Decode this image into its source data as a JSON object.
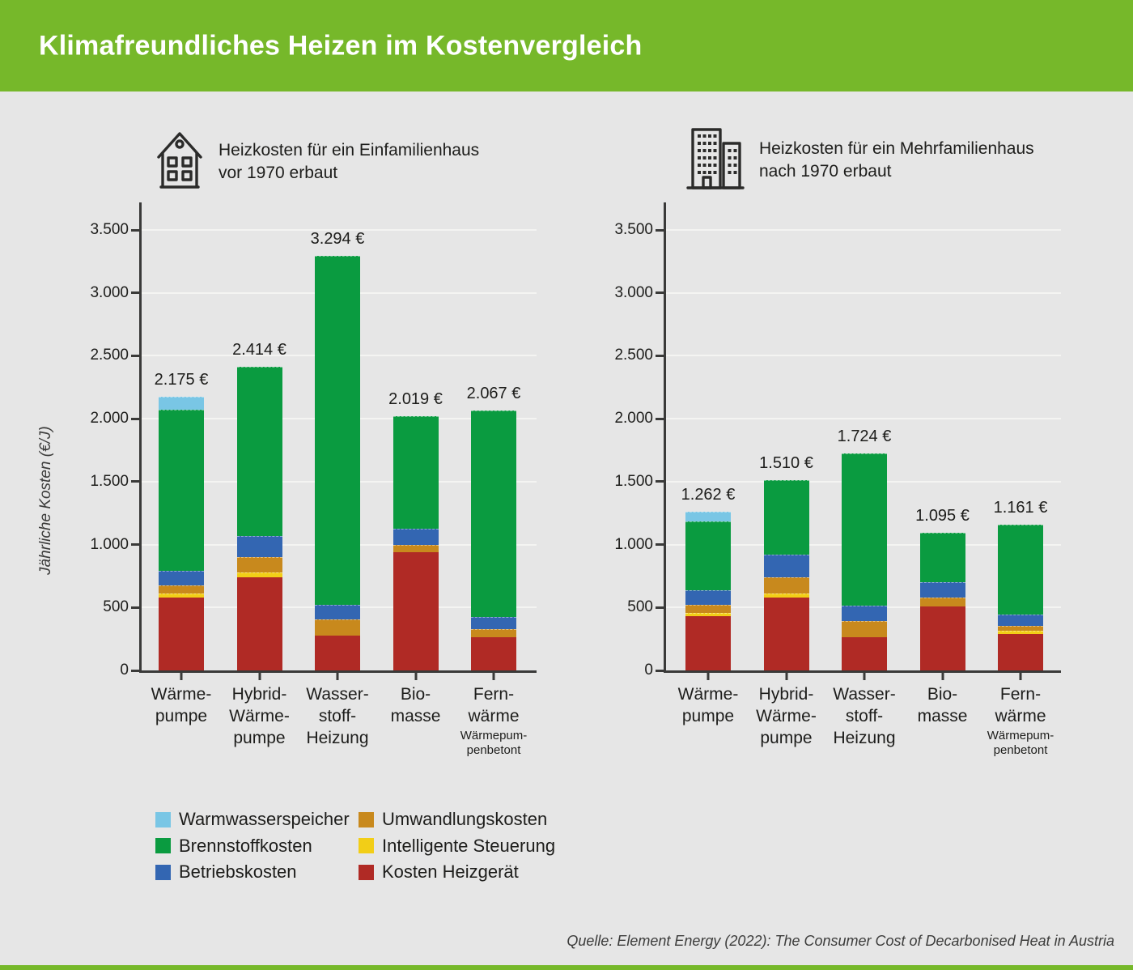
{
  "page": {
    "title": "Klimafreundliches Heizen im Kostenvergleich",
    "source": "Quelle: Element Energy (2022): The Consumer Cost of Decarbonised Heat in Austria"
  },
  "colors": {
    "header_green": "#76B82A",
    "background": "#E6E6E6",
    "axis": "#3A3A39",
    "gridline": "#F4F4F2",
    "text_dark": "#1D1D1B",
    "warmwasserspeicher": "#79C6E5",
    "brennstoffkosten": "#0A9B40",
    "betriebskosten": "#3366B2",
    "umwandlungskosten": "#C8891D",
    "intelligente_steuerung": "#F2CE17",
    "kosten_heizgeraet": "#B02A25"
  },
  "legend": {
    "position": "bottom-left",
    "items": [
      {
        "key": "warmwasserspeicher",
        "label": "Warmwasserspeicher"
      },
      {
        "key": "brennstoffkosten",
        "label": "Brennstoffkosten"
      },
      {
        "key": "betriebskosten",
        "label": "Betriebskosten"
      },
      {
        "key": "umwandlungskosten",
        "label": "Umwandlungskosten"
      },
      {
        "key": "intelligente_steuerung",
        "label": "Intelligente Steuerung"
      },
      {
        "key": "kosten_heizgeraet",
        "label": "Kosten Heizgerät"
      }
    ]
  },
  "chart_data": [
    {
      "type": "bar",
      "stacked": true,
      "title": "Heizkosten für ein Einfamilienhaus vor 1970 erbaut",
      "title_lines": [
        "Heizkosten für ein Einfamilienhaus",
        "vor 1970 erbaut"
      ],
      "icon": "house-icon",
      "ylabel": "Jährliche Kosten (€/J)",
      "unit": "€/Jahr",
      "ylim": [
        0,
        3500
      ],
      "grid": true,
      "yticks": [
        {
          "value": 3500,
          "label": "3.500"
        },
        {
          "value": 3000,
          "label": "3.000"
        },
        {
          "value": 2500,
          "label": "2.500"
        },
        {
          "value": 2000,
          "label": "2.000"
        },
        {
          "value": 1500,
          "label": "1.500"
        },
        {
          "value": 1000,
          "label": "1.000"
        },
        {
          "value": 500,
          "label": "500"
        },
        {
          "value": 0,
          "label": "0"
        }
      ],
      "categories": [
        {
          "label_lines": [
            "Wärme-",
            "pumpe"
          ]
        },
        {
          "label_lines": [
            "Hybrid-",
            "Wärme-",
            "pumpe"
          ]
        },
        {
          "label_lines": [
            "Wasser-",
            "stoff-",
            "Heizung"
          ]
        },
        {
          "label_lines": [
            "Bio-",
            "masse"
          ]
        },
        {
          "label_lines": [
            "Fern-",
            "wärme"
          ],
          "sublabel_lines": [
            "Wärmepum-",
            "penbetont"
          ]
        }
      ],
      "totals": [
        2175,
        2414,
        3294,
        2019,
        2067
      ],
      "total_labels": [
        "2.175 €",
        "2.414 €",
        "3.294 €",
        "2.019 €",
        "2.067 €"
      ],
      "series": [
        {
          "key": "kosten_heizgeraet",
          "name": "Kosten Heizgerät",
          "values": [
            581,
            738,
            274,
            938,
            266
          ]
        },
        {
          "key": "intelligente_steuerung",
          "name": "Intelligente Steuerung",
          "values": [
            28,
            42,
            0,
            0,
            0
          ]
        },
        {
          "key": "umwandlungskosten",
          "name": "Umwandlungskosten",
          "values": [
            64,
            119,
            132,
            58,
            64
          ]
        },
        {
          "key": "betriebskosten",
          "name": "Betriebskosten",
          "values": [
            118,
            170,
            118,
            129,
            97
          ]
        },
        {
          "key": "brennstoffkosten",
          "name": "Brennstoffkosten",
          "values": [
            1278,
            1345,
            2770,
            894,
            1640
          ]
        },
        {
          "key": "warmwasserspeicher",
          "name": "Warmwasserspeicher",
          "values": [
            106,
            0,
            0,
            0,
            0
          ]
        }
      ]
    },
    {
      "type": "bar",
      "stacked": true,
      "title": "Heizkosten für ein Mehrfamilienhaus nach 1970 erbaut",
      "title_lines": [
        "Heizkosten für ein Mehrfamilienhaus",
        "nach 1970 erbaut"
      ],
      "icon": "building-icon",
      "ylabel": "",
      "unit": "€/Jahr",
      "ylim": [
        0,
        3500
      ],
      "grid": true,
      "yticks": [
        {
          "value": 3500,
          "label": "3.500"
        },
        {
          "value": 3000,
          "label": "3.000"
        },
        {
          "value": 2500,
          "label": "2.500"
        },
        {
          "value": 2000,
          "label": "2.000"
        },
        {
          "value": 1500,
          "label": "1.500"
        },
        {
          "value": 1000,
          "label": "1.000"
        },
        {
          "value": 500,
          "label": "500"
        },
        {
          "value": 0,
          "label": "0"
        }
      ],
      "categories": [
        {
          "label_lines": [
            "Wärme-",
            "pumpe"
          ]
        },
        {
          "label_lines": [
            "Hybrid-",
            "Wärme-",
            "pumpe"
          ]
        },
        {
          "label_lines": [
            "Wasser-",
            "stoff-",
            "Heizung"
          ]
        },
        {
          "label_lines": [
            "Bio-",
            "masse"
          ]
        },
        {
          "label_lines": [
            "Fern-",
            "wärme"
          ],
          "sublabel_lines": [
            "Wärmepum-",
            "penbetont"
          ]
        }
      ],
      "totals": [
        1262,
        1510,
        1724,
        1095,
        1161
      ],
      "total_labels": [
        "1.262 €",
        "1.510 €",
        "1.724 €",
        "1.095 €",
        "1.161 €"
      ],
      "series": [
        {
          "key": "kosten_heizgeraet",
          "name": "Kosten Heizgerät",
          "values": [
            430,
            581,
            266,
            507,
            292
          ]
        },
        {
          "key": "intelligente_steuerung",
          "name": "Intelligente Steuerung",
          "values": [
            24,
            32,
            0,
            0,
            22
          ]
        },
        {
          "key": "umwandlungskosten",
          "name": "Umwandlungskosten",
          "values": [
            68,
            125,
            129,
            74,
            39
          ]
        },
        {
          "key": "betriebskosten",
          "name": "Betriebskosten",
          "values": [
            112,
            182,
            118,
            119,
            90
          ]
        },
        {
          "key": "brennstoffkosten",
          "name": "Brennstoffkosten",
          "values": [
            548,
            590,
            1211,
            395,
            718
          ]
        },
        {
          "key": "warmwasserspeicher",
          "name": "Warmwasserspeicher",
          "values": [
            80,
            0,
            0,
            0,
            0
          ]
        }
      ]
    }
  ]
}
